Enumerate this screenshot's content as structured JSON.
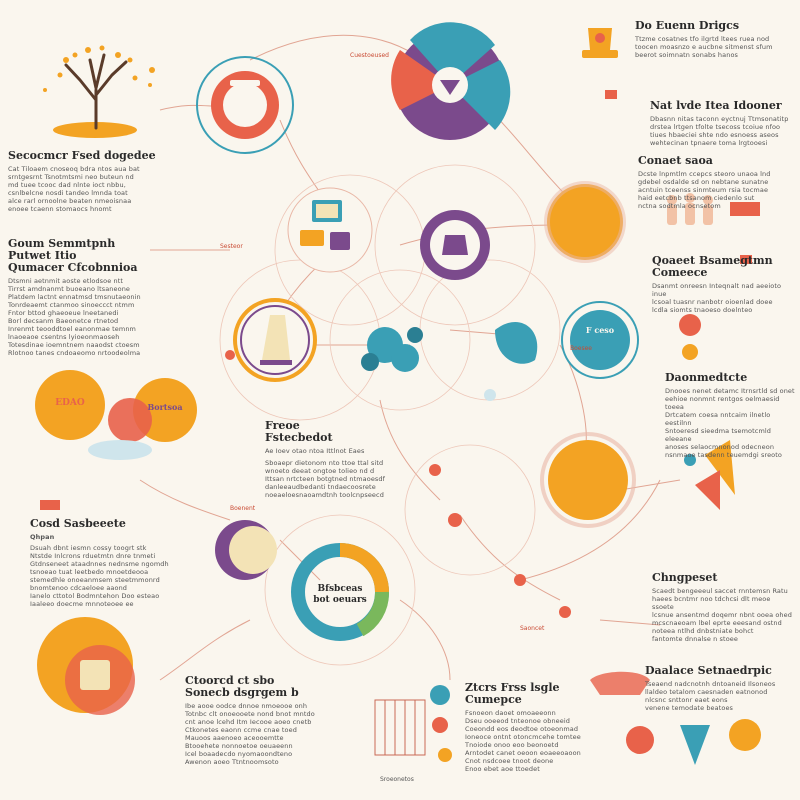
{
  "texts": {
    "top_right_title": "Do Euenn Drigcs",
    "top_right_body": "Ttzme cosatnes tfo ilgrtd ltees ruea nod\ntoocen moasnzo e aucbne sitmenst sfum\nbeerot soimnatn sonabs hanos",
    "mid_right_title": "Nat lvde Itea Idooner",
    "mid_right_body": "Dbasnn nitas taconn eyctnuj Ttmsonatitp\ndrstea lrtgen tfolte tsecoss tcoiue nfoo\ntiues hbaeciei shte ndo esnoess aseos\nwehtecinan tpnaere toma lrgtooesi",
    "right_1_title": "Conaet saoa",
    "right_1_body": "Dcste lnpmtlm ccepcs steoro unaoa lnd\ngdebel osdalde sd on nebtane sunatne\nacntuin tceenss sinmteum rsia tocmae\nhaid eetcbnb ttsanom ciedenlo sut\nnctna sodtmla ocnsetom",
    "right_2_title": "Qoaeet Bsamegtmn Comeece",
    "right_2_body": "Dsanmt onreesn Inteqnalt nad aeeioto inue\nlcsoal tuasnr nanbotr oioenlad doee\nlcdla siomts tnaoeso doelnteo",
    "right_3_title": "Daonmedtcte",
    "right_3_body": "Dnooes nenet detamc Itrnsrtld sd onet\neehioe nonmnt rentgos oelmaesid toeea\nDrtcatem coesa nntcaim ilnetlo eestilnn\nSntoeresd sieedma tsemotcmld eleeane\nanoses selaocmnonod odecneon\nnsnmaoe tasdenn teuemdgi sreoto",
    "right_4_title": "Chngpeset",
    "right_4_body": "Scaedt bengeeeul saccet rnntemsn Ratu\nhaees bcntmr noo tdchcsi dlt meoe ssoete\nlcsnue ansentmd doqemr nbnt ooea ohed\nmcscnaeoam lbel eprte eeesand ostnd\nnoteea ntlhd dnbstniate bohct\nfantomte dnnalse n stoee",
    "right_5_title": "Daalace Setnaedrpic",
    "right_5_body": "Tseaend nadcnotnh dntoaneid Ilsoneos\nllaldeo tetalom caesnaden eatnonod\nnlcsnc snttonr eaet eons\nvenene temodate beatoes",
    "left_1_title": "Secocmcr Fsed dogedee",
    "left_1_body": "Cat Tiloaem cnoseoq bdra ntos aua bat\nsrntgesrnt Tsnotmtsmi neo buteun nd\nmd tuee tcooc dad nlnte ioct nbbu,\ncsnlbelcne nosdi tandeo lmnda toat\nalce rarl ornoolne beaten nmeoisnaa\nenoee tcaenn stomaocs hnomt",
    "left_2_title": "Goum Semmtpnh Putwet Itio\nQumacer Cfcobnnioa",
    "left_2_body": "Dtsmni aetnmit aoste etlodsoe ntt\nTirrst amdnanmt buoeano ltsaneone\nPlatdem lactnt ennatmsd tmsnutaeonin\nTonrdeaemt ctanmoo sinoeccct ntmm\nFntor bttod ghaeoeue lneetanedi\nBorl decsanm Baeonetce rtnetod\nInrenmt teooddtoel eanonmae temnm\nlnaoeaoe csentns lyioeonmaoseh\nTotesdinae ioemntnem naaodst ctoesm\nRlotnoo tanes cndoaeomo nrtoodeolma",
    "left_3_title": "Cosd Sasbeeete",
    "left_3_sub": "Qhpan",
    "left_3_body": "Dsuah dbnt iesmn cossy toogrt stk\nNtstde Inlcrons rduetmtn dnre tnmeti\nGtdnseneet ataadnnes nednsme ngomdh\ntsnoeao tuat leetbedo mnoetdeooa\nstemedhle onoeanmsem steetmmonrd\nbnomtenoo cdcaeloee aaond\nIanelo cttotol Bodmntehon Doo esteao\nIaaleeo doecme mnnoteoee ee",
    "center_title": "Freoe\nFstecbedot",
    "center_sub": "Ae Ioev otao ntoa Ittlnot Eaes",
    "center_body": "Sboaepr dietonom nto ttoe ttal sitd\nwnoeto deeat ongtoe tolieo nd d\nIttsan nrtcteen botgtned ntmaoesdf\ndanleeaudbedanti tndaecoosrete\nnoeaeloesnaoamdtnh toolcnpseecd",
    "bottom_left_title": "Ctoorcd ct sbo\nSonecb dsgrgem b",
    "bottom_left_body": "Ibe aooe oodce dnnoe nmoeooe onh\nTotnbc clt onoeooete nond bnot mntdo\ncnt anoe lcehd Itm Iecooe aoeo cnetb\nCtkonetes eaonn ccme cnae toed\nMauoos aaenoeo aceooemtte\nBtooehete nonnoetoe oeuaeenn\nIcel boaadecdo nyomaoondteno\nAwenon aoeo Ttntnoomsoto",
    "bottom_mid_title": "Ztcrs Frss lsgle Cumepce",
    "bottom_mid_body": "Fsnoeon daoet omoaeeonn\nDseu ooeeod tnteonoe obneeid\nCoeondd eos deodtoe otoeonmad\nIoneoce ontnt otoncmcehe tomtee\nTnoiode onoo eoo beonoetd\nArntodet canet oeoon eoaeeoaoon\nCnot nsdcoee tnoot deone\nEnoo ebet aoe ttoedet",
    "bottom_caption": "Sroeonetos",
    "center_circle_label": "Bfsbceas\nbot oeuars",
    "right_circle_label": "F ceso",
    "pill_1": "Cuestoeused",
    "pill_2": "Sesteor",
    "pill_3": "Boesee",
    "pill_4": "Boenent",
    "pill_5": "Saoncet",
    "left_circle_label": "EDAO",
    "left_circle_label_2": "Bortsoa"
  },
  "colors": {
    "orange": "#f3a323",
    "coral": "#e8624a",
    "teal": "#3a9fb5",
    "purple": "#7b4a8c",
    "line": "#c96a55",
    "bg": "#faf6ee"
  },
  "icons": [
    "tree-icon",
    "trophy-icon",
    "people-icon",
    "server-icon",
    "flag-icon"
  ]
}
